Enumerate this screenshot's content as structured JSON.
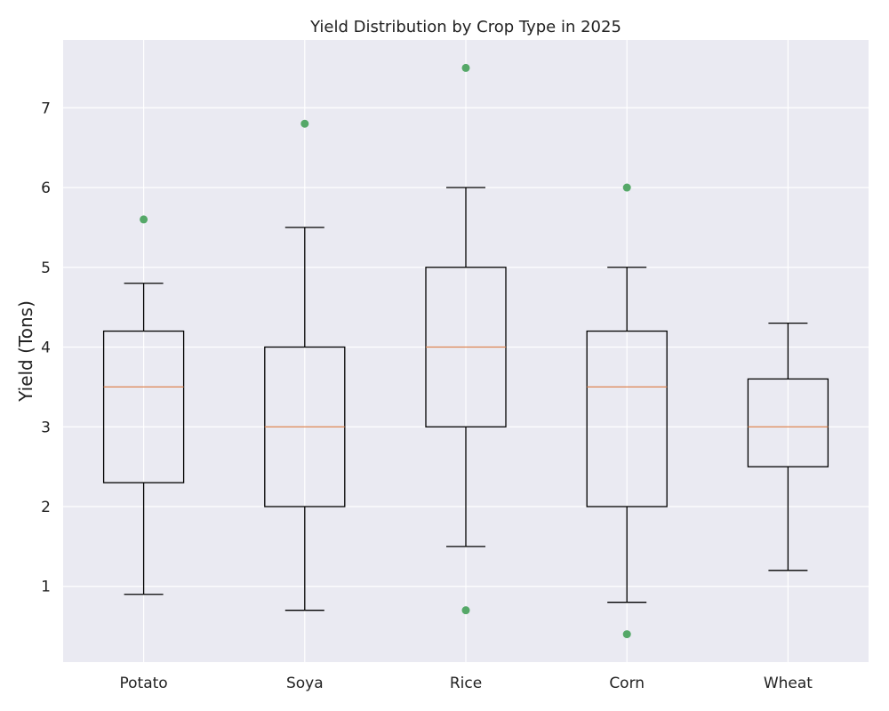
{
  "chart_data": {
    "type": "box",
    "title": "Yield Distribution by Crop Type in 2025",
    "xlabel": "",
    "ylabel": "Yield (Tons)",
    "ylim": [
      0.05,
      7.85
    ],
    "yticks": [
      1,
      2,
      3,
      4,
      5,
      6,
      7
    ],
    "grid": true,
    "categories": [
      "Potato",
      "Soya",
      "Rice",
      "Corn",
      "Wheat"
    ],
    "boxes": [
      {
        "category": "Potato",
        "whisker_low": 0.9,
        "q1": 2.3,
        "median": 3.5,
        "q3": 4.2,
        "whisker_high": 4.8,
        "outliers": [
          5.6
        ]
      },
      {
        "category": "Soya",
        "whisker_low": 0.7,
        "q1": 2.0,
        "median": 3.0,
        "q3": 4.0,
        "whisker_high": 5.5,
        "outliers": [
          6.8
        ]
      },
      {
        "category": "Rice",
        "whisker_low": 1.5,
        "q1": 3.0,
        "median": 4.0,
        "q3": 5.0,
        "whisker_high": 6.0,
        "outliers": [
          0.7,
          7.5
        ]
      },
      {
        "category": "Corn",
        "whisker_low": 0.8,
        "q1": 2.0,
        "median": 3.5,
        "q3": 4.2,
        "whisker_high": 5.0,
        "outliers": [
          0.4,
          6.0
        ]
      },
      {
        "category": "Wheat",
        "whisker_low": 1.2,
        "q1": 2.5,
        "median": 3.0,
        "q3": 3.6,
        "whisker_high": 4.3,
        "outliers": []
      }
    ],
    "colors": {
      "background": "#eaeaf2",
      "grid": "#ffffff",
      "box": "#000000",
      "median": "#dd8452",
      "outlier": "#55a868"
    }
  }
}
